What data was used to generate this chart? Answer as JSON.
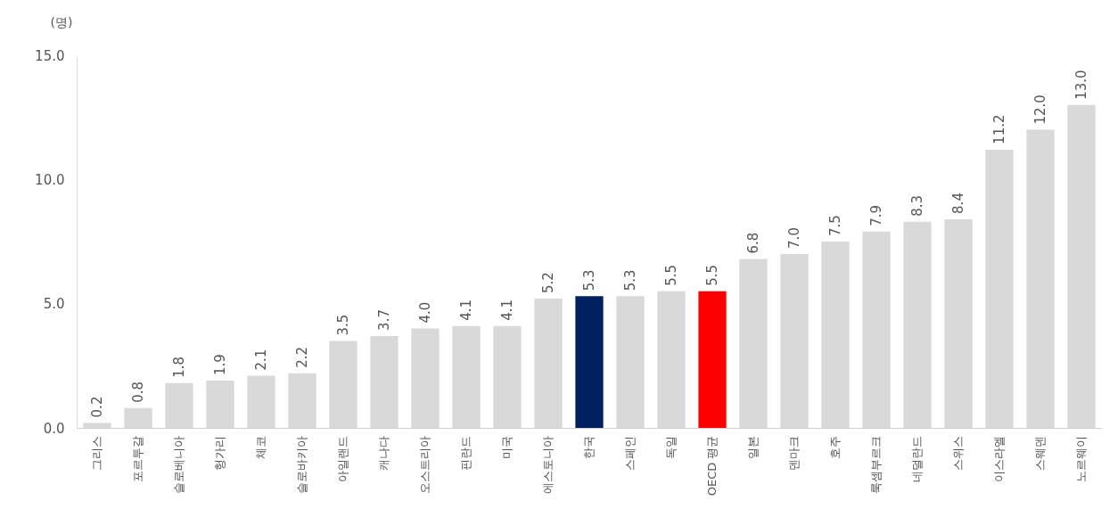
{
  "chart_data": {
    "type": "bar",
    "ylabel": "(명)",
    "categories": [
      "그리스",
      "포르투갈",
      "슬로베니아",
      "헝가리",
      "체코",
      "슬로바키아",
      "아일랜드",
      "캐나다",
      "오스트리아",
      "핀란드",
      "미국",
      "에스토니아",
      "한국",
      "스페인",
      "독일",
      "OECD 평균",
      "일본",
      "덴마크",
      "호주",
      "룩셈부르크",
      "네덜란드",
      "스위스",
      "이스라엘",
      "스웨덴",
      "노르웨이"
    ],
    "values": [
      0.2,
      0.8,
      1.8,
      1.9,
      2.1,
      2.2,
      3.5,
      3.7,
      4.0,
      4.1,
      4.1,
      5.2,
      5.3,
      5.3,
      5.5,
      5.5,
      6.8,
      7.0,
      7.5,
      7.9,
      8.3,
      8.4,
      11.2,
      12.0,
      13.0
    ],
    "colors": [
      "#d9d9d9",
      "#d9d9d9",
      "#d9d9d9",
      "#d9d9d9",
      "#d9d9d9",
      "#d9d9d9",
      "#d9d9d9",
      "#d9d9d9",
      "#d9d9d9",
      "#d9d9d9",
      "#d9d9d9",
      "#d9d9d9",
      "#002060",
      "#d9d9d9",
      "#d9d9d9",
      "#ff0000",
      "#d9d9d9",
      "#d9d9d9",
      "#d9d9d9",
      "#d9d9d9",
      "#d9d9d9",
      "#d9d9d9",
      "#d9d9d9",
      "#d9d9d9",
      "#d9d9d9"
    ],
    "ylim": [
      0,
      15
    ],
    "yticks": [
      {
        "value": 0,
        "label": "0.0"
      },
      {
        "value": 5,
        "label": "5.0"
      },
      {
        "value": 10,
        "label": "10.0"
      },
      {
        "value": 15,
        "label": "15.0"
      }
    ],
    "value_labels": [
      "0.2",
      "0.8",
      "1.8",
      "1.9",
      "2.1",
      "2.2",
      "3.5",
      "3.7",
      "4.0",
      "4.1",
      "4.1",
      "5.2",
      "5.3",
      "5.3",
      "5.5",
      "5.5",
      "6.8",
      "7.0",
      "7.5",
      "7.9",
      "8.3",
      "8.4",
      "11.2",
      "12.0",
      "13.0"
    ]
  }
}
